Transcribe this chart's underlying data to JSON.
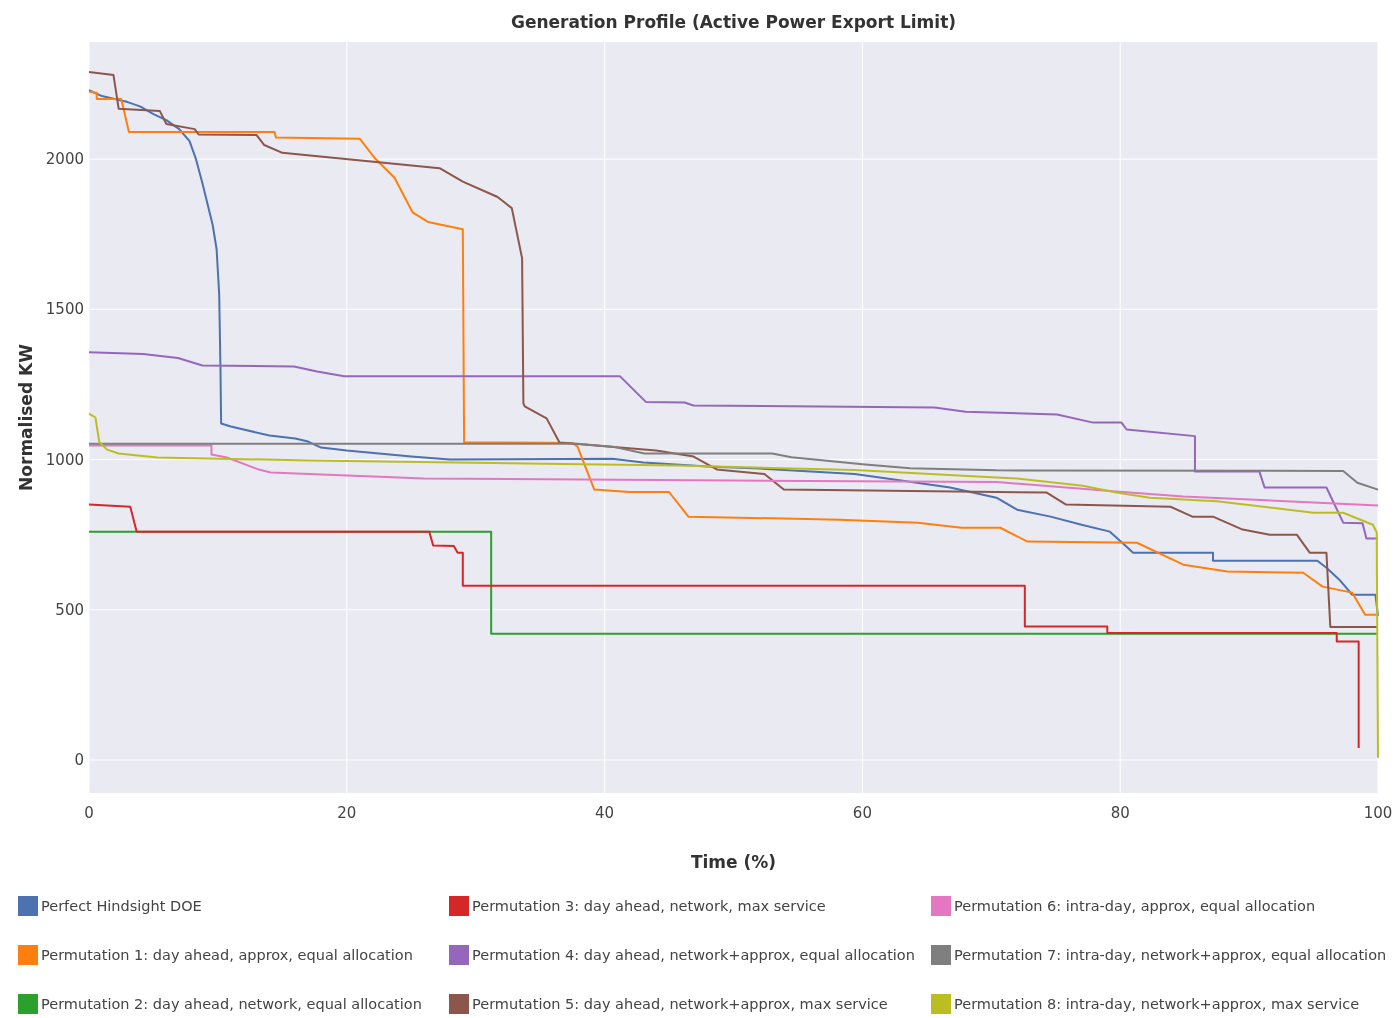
{
  "chart_data": {
    "type": "line",
    "title": "Generation Profile (Active Power Export Limit)",
    "xlabel": "Time (%)",
    "ylabel": "Normalised KW",
    "xlim": [
      0,
      100
    ],
    "ylim": [
      -110,
      2390
    ],
    "xticks": [
      0,
      20,
      40,
      60,
      80,
      100
    ],
    "yticks": [
      0,
      500,
      1000,
      1500,
      2000
    ],
    "grid": true,
    "legend": "bottom",
    "line_style": "solid",
    "series": [
      {
        "name": "Perfect Hindsight DOE",
        "color": "#4c72b0",
        "x": [
          0,
          1,
          2,
          3,
          4,
          5,
          6,
          7,
          7.8,
          8.3,
          8.8,
          9.2,
          9.6,
          9.9,
          10.1,
          10.2,
          10.25,
          11,
          12,
          14,
          16,
          17,
          18,
          20,
          25,
          28,
          40.6,
          43,
          48,
          52,
          56,
          59.4,
          63,
          66.8,
          70.4,
          72,
          74.6,
          77,
          79.2,
          80.5,
          81,
          87.2,
          87.2,
          95.3,
          96,
          97,
          98,
          99.8,
          100
        ],
        "values": [
          2230,
          2210,
          2200,
          2190,
          2175,
          2150,
          2130,
          2100,
          2060,
          2000,
          1920,
          1850,
          1780,
          1700,
          1550,
          1300,
          1120,
          1110,
          1100,
          1080,
          1070,
          1060,
          1040,
          1030,
          1010,
          1000,
          1003,
          990,
          977,
          970,
          960,
          952,
          930,
          907,
          873,
          833,
          810,
          783,
          760,
          710,
          690,
          690,
          663,
          663,
          640,
          600,
          550,
          550,
          480
        ]
      },
      {
        "name": "Permutation 1: day ahead, approx, equal allocation",
        "color": "#ff7f0e",
        "x": [
          0,
          0.6,
          0.6,
          2.5,
          3.1,
          14.4,
          14.5,
          21,
          22.2,
          23.7,
          25.1,
          26.3,
          29,
          29.1,
          37.5,
          37.9,
          39.2,
          41.9,
          45,
          46.5,
          58.2,
          64.3,
          67.7,
          70.7,
          72.8,
          81.3,
          84.9,
          88.3,
          94.2,
          95.7,
          98,
          99,
          100
        ],
        "values": [
          2225,
          2220,
          2200,
          2200,
          2090,
          2090,
          2072,
          2068,
          2002,
          1938,
          1823,
          1791,
          1767,
          1058,
          1055,
          1043,
          900,
          892,
          892,
          810,
          800,
          790,
          773,
          773,
          727,
          723,
          650,
          627,
          623,
          577,
          557,
          483,
          483
        ]
      },
      {
        "name": "Permutation 2: day ahead, network, equal allocation",
        "color": "#2ca02c",
        "x": [
          0,
          31.2,
          31.2,
          100
        ],
        "values": [
          760,
          760,
          420,
          420
        ]
      },
      {
        "name": "Permutation 3: day ahead, network, max service",
        "color": "#d62728",
        "x": [
          0,
          3.2,
          3.7,
          26.4,
          26.7,
          28.3,
          28.6,
          29,
          29,
          72.6,
          72.6,
          79,
          79,
          96.8,
          96.8,
          98.5,
          98.5
        ],
        "values": [
          850,
          843,
          760,
          760,
          714,
          712,
          690,
          690,
          580,
          580,
          444,
          444,
          423,
          423,
          394,
          394,
          40
        ]
      },
      {
        "name": "Permutation 4: day ahead, network+approx, equal allocation",
        "color": "#9467bd",
        "x": [
          0,
          4.2,
          6.9,
          8.8,
          15.9,
          17.7,
          19.8,
          41.2,
          43.2,
          46.2,
          46.9,
          65.6,
          68,
          75.1,
          77.9,
          80.1,
          80.5,
          85.8,
          85.8,
          90.8,
          91.2,
          96,
          97.3,
          98.8,
          99.1,
          100
        ],
        "values": [
          1357,
          1351,
          1338,
          1313,
          1310,
          1293,
          1277,
          1277,
          1192,
          1190,
          1180,
          1173,
          1159,
          1150,
          1123,
          1123,
          1100,
          1078,
          960,
          960,
          907,
          907,
          790,
          788,
          737,
          737
        ]
      },
      {
        "name": "Permutation 5: day ahead, network+approx, max service",
        "color": "#8c564b",
        "x": [
          0,
          1.9,
          2.3,
          5.5,
          6,
          8.2,
          8.5,
          13,
          13.6,
          15,
          20.1,
          27.2,
          29,
          31.7,
          32.8,
          33.6,
          33.7,
          33.8,
          35.5,
          36.5,
          44,
          46.9,
          48.7,
          52.4,
          53.9,
          70.4,
          74.3,
          75.8,
          83.9,
          85.6,
          87.2,
          89.5,
          91.6,
          93.7,
          94.7,
          96,
          96.3,
          100
        ],
        "values": [
          2290,
          2280,
          2168,
          2160,
          2117,
          2100,
          2082,
          2080,
          2047,
          2021,
          2000,
          1970,
          1925,
          1874,
          1837,
          1670,
          1187,
          1177,
          1137,
          1057,
          1030,
          1010,
          967,
          952,
          900,
          892,
          890,
          850,
          843,
          810,
          810,
          767,
          750,
          750,
          690,
          690,
          443,
          443
        ]
      },
      {
        "name": "Permutation 6: intra-day, approx, equal allocation",
        "color": "#e377c2",
        "x": [
          0,
          9.5,
          9.5,
          10.7,
          13.1,
          14.1,
          26,
          50,
          70.4,
          79.7,
          84.9,
          100
        ],
        "values": [
          1047,
          1047,
          1017,
          1007,
          968,
          957,
          937,
          930,
          925,
          894,
          877,
          847
        ]
      },
      {
        "name": "Permutation 7: intra-day, network+approx, equal allocation",
        "color": "#7f7f7f",
        "x": [
          0,
          37.9,
          40.6,
          43.1,
          53,
          54.5,
          60,
          63.7,
          70.4,
          97.3,
          98.4,
          100
        ],
        "values": [
          1053,
          1053,
          1043,
          1020,
          1020,
          1008,
          984,
          971,
          964,
          962,
          923,
          900
        ]
      },
      {
        "name": "Permutation 8: intra-day, network+approx, max service",
        "color": "#bcbd22",
        "x": [
          0,
          0.5,
          0.8,
          1.4,
          2.3,
          5.3,
          17.1,
          45.6,
          59.4,
          70.4,
          72,
          77.1,
          79.7,
          82.3,
          87.5,
          95,
          97.3,
          99.6,
          99.9,
          100
        ],
        "values": [
          1153,
          1140,
          1058,
          1033,
          1020,
          1007,
          997,
          980,
          965,
          940,
          937,
          913,
          890,
          873,
          861,
          823,
          823,
          783,
          757,
          7
        ]
      }
    ]
  }
}
